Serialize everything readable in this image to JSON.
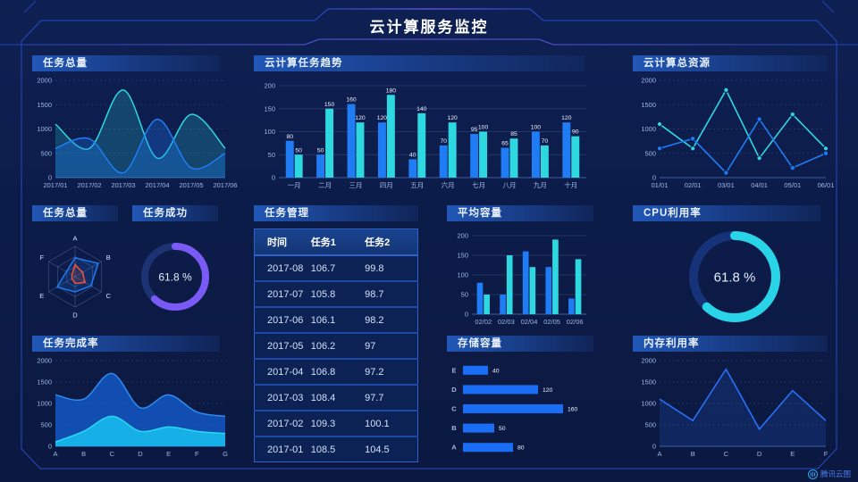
{
  "page": {
    "title": "云计算服务监控",
    "logo": "腾讯云图"
  },
  "colors": {
    "background": "#0c1b47",
    "frame": "#2b4ed0",
    "accent_purple": "#7a5af5",
    "series_blue": "#1f7cf4",
    "series_cyan": "#2ed8e0",
    "radar_red": "#f55030",
    "panel_header_gradient_start": "#2157b6",
    "panel_header_gradient_end": "#132d66"
  },
  "chart_data": [
    {
      "id": "task-total-trend",
      "type": "area",
      "title": "任务总量",
      "categories": [
        "2017/01",
        "2017/02",
        "2017/03",
        "2017/04",
        "2017/05",
        "2017/06"
      ],
      "series": [
        {
          "name": "series-cyan",
          "color": "#2ed8e0",
          "fill": "rgba(46,216,224,0.22)",
          "values": [
            1100,
            600,
            1800,
            400,
            1300,
            600
          ]
        },
        {
          "name": "series-blue",
          "color": "#1f7cf4",
          "fill": "rgba(31,124,244,0.30)",
          "values": [
            600,
            800,
            100,
            1200,
            200,
            500
          ]
        }
      ],
      "ylim": [
        0,
        2000
      ],
      "yticks": [
        0,
        500,
        1000,
        1500,
        2000
      ],
      "grid_dashed": true
    },
    {
      "id": "cloud-task-trend",
      "type": "bar",
      "title": "云计算任务趋势",
      "categories": [
        "一月",
        "二月",
        "三月",
        "四月",
        "五月",
        "六月",
        "七月",
        "八月",
        "九月",
        "十月"
      ],
      "series": [
        {
          "name": "series-blue",
          "color": "#1f7cf4",
          "values": [
            80,
            50,
            160,
            120,
            40,
            70,
            95,
            65,
            100,
            120
          ]
        },
        {
          "name": "series-cyan",
          "color": "#2ed8e0",
          "values": [
            50,
            150,
            120,
            180,
            140,
            120,
            100,
            85,
            70,
            90
          ]
        }
      ],
      "ylim": [
        0,
        200
      ],
      "yticks": [
        0,
        50,
        100,
        150,
        200
      ],
      "grid_dashed": false,
      "show_values": true
    },
    {
      "id": "cloud-total-resources",
      "type": "line",
      "title": "云计算总资源",
      "categories": [
        "01/01",
        "02/01",
        "03/01",
        "04/01",
        "05/01",
        "06/01"
      ],
      "series": [
        {
          "name": "series-cyan",
          "color": "#2ed8e0",
          "values": [
            1100,
            600,
            1800,
            400,
            1300,
            600
          ]
        },
        {
          "name": "series-blue",
          "color": "#1f7cf4",
          "values": [
            600,
            800,
            100,
            1200,
            200,
            500
          ]
        }
      ],
      "ylim": [
        0,
        2000
      ],
      "yticks": [
        0,
        500,
        1000,
        1500,
        2000
      ],
      "grid_dashed": true,
      "markers": true
    },
    {
      "id": "task-total-radar",
      "type": "radar",
      "title": "任务总量",
      "categories": [
        "A",
        "B",
        "C",
        "D",
        "E",
        "F"
      ],
      "max": 100,
      "series": [
        {
          "name": "radar-blue",
          "color": "#1f7cf4",
          "fill": "rgba(31,124,244,0.18)",
          "values": [
            62,
            88,
            60,
            50,
            68,
            33
          ]
        },
        {
          "name": "radar-red",
          "color": "#f55030",
          "fill": "rgba(245,80,48,0.15)",
          "values": [
            40,
            28,
            38,
            22,
            12,
            12
          ]
        }
      ]
    },
    {
      "id": "task-success-gauge",
      "type": "donut",
      "title": "任务成功",
      "value": 61.8,
      "label": "61.8 %",
      "color": "#7a5af5",
      "track": "#1c3273",
      "font": 12
    },
    {
      "id": "task-table",
      "type": "table",
      "title": "任务管理",
      "headers": [
        "时间",
        "任务1",
        "任务2"
      ],
      "rows": [
        [
          "2017-08",
          "106.7",
          "99.8"
        ],
        [
          "2017-07",
          "105.8",
          "98.7"
        ],
        [
          "2017-06",
          "106.1",
          "98.2"
        ],
        [
          "2017-05",
          "106.2",
          "97"
        ],
        [
          "2017-04",
          "106.8",
          "97.2"
        ],
        [
          "2017-03",
          "108.4",
          "97.7"
        ],
        [
          "2017-02",
          "109.3",
          "100.1"
        ],
        [
          "2017-01",
          "108.5",
          "104.5"
        ]
      ]
    },
    {
      "id": "avg-capacity",
      "type": "bar",
      "title": "平均容量",
      "categories": [
        "02/02",
        "02/03",
        "02/04",
        "02/05",
        "02/06"
      ],
      "series": [
        {
          "name": "series-blue",
          "color": "#1f7cf4",
          "values": [
            80,
            50,
            160,
            120,
            40
          ]
        },
        {
          "name": "series-cyan",
          "color": "#2ed8e0",
          "values": [
            50,
            150,
            120,
            190,
            140
          ]
        }
      ],
      "ylim": [
        0,
        200
      ],
      "yticks": [
        0,
        50,
        100,
        150,
        200
      ],
      "grid_dashed": false,
      "show_values": false
    },
    {
      "id": "cpu-usage-gauge",
      "type": "donut",
      "title": "CPU利用率",
      "value": 61.8,
      "label": "61.8 %",
      "color": "#29d3e8",
      "track": "#16337a",
      "font": 15
    },
    {
      "id": "task-completion",
      "type": "area2",
      "title": "任务完成率",
      "categories": [
        "A",
        "B",
        "C",
        "D",
        "E",
        "F",
        "G"
      ],
      "series": [
        {
          "name": "series-blue",
          "color": "#2d8cf0",
          "fill": "rgba(19,85,192,0.88)",
          "values": [
            1200,
            1100,
            1700,
            900,
            1200,
            800,
            700
          ]
        },
        {
          "name": "series-cyan",
          "color": "#2ad8f0",
          "fill": "rgba(23,180,234,0.95)",
          "values": [
            100,
            350,
            700,
            350,
            450,
            350,
            300
          ]
        }
      ],
      "ylim": [
        0,
        2000
      ],
      "yticks": [
        0,
        500,
        1000,
        1500,
        2000
      ],
      "grid_dashed": true
    },
    {
      "id": "storage-capacity",
      "type": "hbar",
      "title": "存储容量",
      "categories": [
        "E",
        "D",
        "C",
        "B",
        "A"
      ],
      "values": [
        40,
        120,
        160,
        50,
        80
      ],
      "color": "#1a6df5",
      "max": 160
    },
    {
      "id": "memory-usage",
      "type": "line",
      "title": "内存利用率",
      "categories": [
        "A",
        "B",
        "C",
        "D",
        "E",
        "F"
      ],
      "series": [
        {
          "name": "series-blue",
          "color": "#2a6ff5",
          "fill": "rgba(40,110,240,0.16)",
          "values": [
            1100,
            600,
            1800,
            400,
            1300,
            600
          ]
        }
      ],
      "ylim": [
        0,
        2000
      ],
      "yticks": [
        0,
        500,
        1000,
        1500,
        2000
      ],
      "grid_dashed": true,
      "markers": false
    }
  ]
}
